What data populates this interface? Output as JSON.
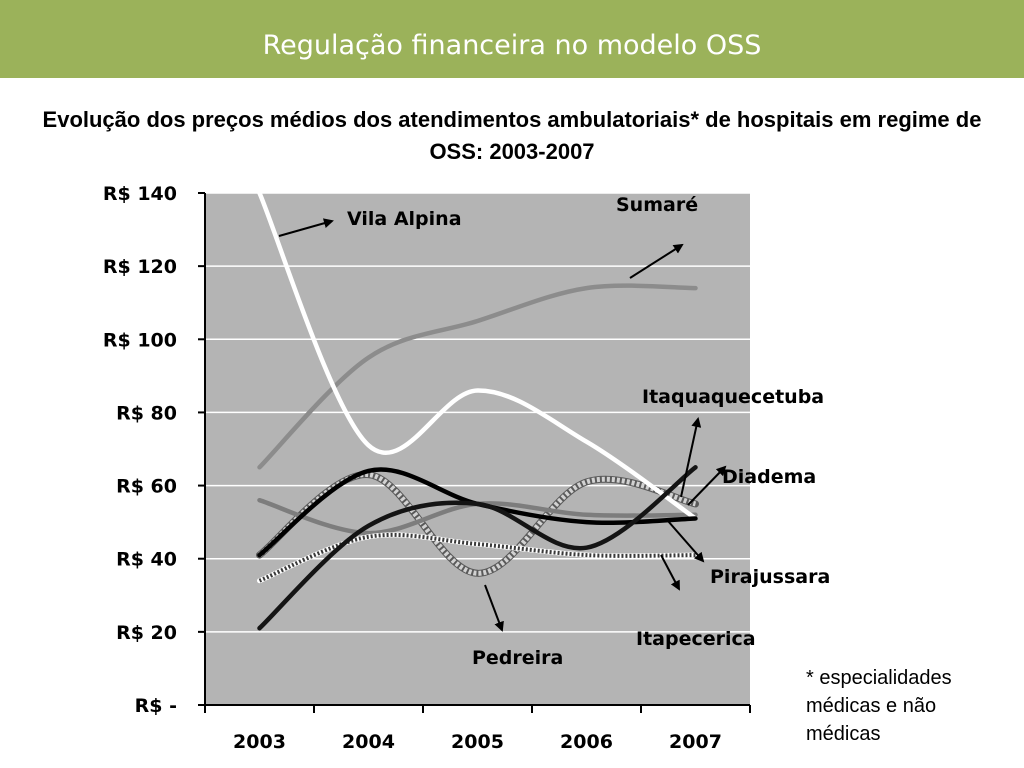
{
  "header": {
    "title": "Regulação financeira no modelo OSS"
  },
  "subtitle": "Evolução dos preços médios dos atendimentos ambulatoriais* de hospitais em regime de OSS: 2003-2007",
  "footnote": "* especialidades médicas e não médicas",
  "colors": {
    "banner": "#9bb25a",
    "plot_background": "#b4b4b4",
    "gridline": "#ffffff"
  },
  "chart_data": {
    "type": "line",
    "categories": [
      "2003",
      "2004",
      "2005",
      "2006",
      "2007"
    ],
    "y_ticks": [
      {
        "value": 140,
        "label": "R$ 140"
      },
      {
        "value": 120,
        "label": "R$ 120"
      },
      {
        "value": 100,
        "label": "R$ 100"
      },
      {
        "value": 80,
        "label": "R$ 80"
      },
      {
        "value": 60,
        "label": "R$ 60"
      },
      {
        "value": 40,
        "label": "R$ 40"
      },
      {
        "value": 20,
        "label": "R$ 20"
      },
      {
        "value": 0,
        "label": "R$ -"
      }
    ],
    "ylim": [
      0,
      140
    ],
    "grid": true,
    "series": [
      {
        "name": "Sumaré",
        "color": "#8c8c8c",
        "style": "solid",
        "values": [
          65,
          95,
          105,
          114,
          114
        ]
      },
      {
        "name": "Vila Alpina",
        "color": "#ffffff",
        "style": "solid",
        "values": [
          140,
          71,
          86,
          72,
          51
        ]
      },
      {
        "name": "Itaquaquecetuba",
        "color": "#141414",
        "style": "solid",
        "values": [
          21,
          49,
          55,
          43,
          65
        ]
      },
      {
        "name": "Diadema",
        "color": "#000000",
        "style": "solid",
        "values": [
          41,
          64,
          55,
          50,
          51
        ]
      },
      {
        "name": "Pirajussara",
        "color": "#7d7d7d",
        "style": "solid",
        "values": [
          56,
          47,
          55,
          52,
          52
        ]
      },
      {
        "name": "Itapecerica",
        "color": "#3a3a3a",
        "style": "dotted",
        "values": [
          34,
          46,
          44,
          41,
          41
        ]
      },
      {
        "name": "Pedreira",
        "color": "#d2d2d2",
        "style": "hatched",
        "values": [
          41,
          63,
          36,
          61,
          55
        ]
      }
    ],
    "annotations": [
      {
        "label": "Vila Alpina",
        "series": "Vila Alpina"
      },
      {
        "label": "Sumaré",
        "series": "Sumaré"
      },
      {
        "label": "Itaquaquecetuba",
        "series": "Itaquaquecetuba"
      },
      {
        "label": "Diadema",
        "series": "Diadema"
      },
      {
        "label": "Pirajussara",
        "series": "Pirajussara"
      },
      {
        "label": "Itapecerica",
        "series": "Itapecerica"
      },
      {
        "label": "Pedreira",
        "series": "Pedreira"
      }
    ]
  }
}
